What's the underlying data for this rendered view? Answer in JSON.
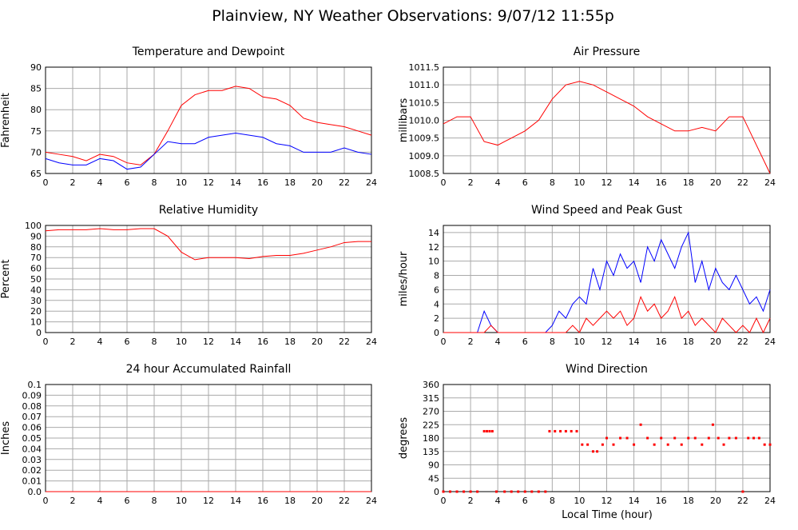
{
  "title": "Plainview, NY Weather Observations: 9/07/12 11:55p",
  "x_label": "Local Time (hour)",
  "chart_data": [
    {
      "type": "line",
      "title": "Temperature and Dewpoint",
      "y_label": "Fahrenheit",
      "x": [
        0,
        1,
        2,
        3,
        4,
        5,
        6,
        7,
        8,
        9,
        10,
        11,
        12,
        13,
        14,
        15,
        16,
        17,
        18,
        19,
        20,
        21,
        22,
        23,
        24
      ],
      "series": [
        {
          "color": "#ff0000",
          "values": [
            70,
            69.5,
            69,
            68,
            69.5,
            69,
            67.5,
            67,
            69.5,
            75,
            81,
            83.5,
            84.5,
            84.5,
            85.5,
            85,
            83,
            82.5,
            81,
            78,
            77,
            76.5,
            76,
            75,
            74
          ]
        },
        {
          "color": "#0000ff",
          "values": [
            68.5,
            67.5,
            67,
            67,
            68.5,
            68,
            66,
            66.5,
            69.5,
            72.5,
            72,
            72,
            73.5,
            74,
            74.5,
            74,
            73.5,
            72,
            71.5,
            70,
            70,
            70,
            71,
            70,
            69.5
          ]
        }
      ],
      "xlim": [
        0,
        24
      ],
      "xticks": [
        0,
        2,
        4,
        6,
        8,
        10,
        12,
        14,
        16,
        18,
        20,
        22,
        24
      ],
      "ylim": [
        65,
        90
      ],
      "yticks": [
        65,
        70,
        75,
        80,
        85,
        90
      ],
      "grid": true
    },
    {
      "type": "line",
      "title": "Air Pressure",
      "y_label": "millibars",
      "x": [
        0,
        1,
        2,
        3,
        4,
        5,
        6,
        7,
        8,
        9,
        10,
        11,
        12,
        13,
        14,
        15,
        16,
        17,
        18,
        19,
        20,
        21,
        22,
        23,
        24
      ],
      "series": [
        {
          "color": "#ff0000",
          "values": [
            1009.9,
            1010.1,
            1010.1,
            1009.4,
            1009.3,
            1009.5,
            1009.7,
            1010.0,
            1010.6,
            1011.0,
            1011.1,
            1011.0,
            1010.8,
            1010.6,
            1010.4,
            1010.1,
            1009.9,
            1009.7,
            1009.7,
            1009.8,
            1009.7,
            1010.1,
            1010.1,
            1009.3,
            1008.5
          ]
        }
      ],
      "xlim": [
        0,
        24
      ],
      "xticks": [
        0,
        2,
        4,
        6,
        8,
        10,
        12,
        14,
        16,
        18,
        20,
        22,
        24
      ],
      "ylim": [
        1008.5,
        1011.5
      ],
      "yticks": [
        1008.5,
        {
          "value": 1009,
          "label": "1009.0"
        },
        1009.5,
        {
          "value": 1010,
          "label": "1010.0"
        },
        1010.5,
        {
          "value": 1011,
          "label": "1011.0"
        },
        1011.5
      ],
      "grid": true
    },
    {
      "type": "line",
      "title": "Relative Humidity",
      "y_label": "Percent",
      "x": [
        0,
        1,
        2,
        3,
        4,
        5,
        6,
        7,
        8,
        9,
        10,
        11,
        12,
        13,
        14,
        15,
        16,
        17,
        18,
        19,
        20,
        21,
        22,
        23,
        24
      ],
      "series": [
        {
          "color": "#ff0000",
          "values": [
            95,
            96,
            96,
            96,
            97,
            96,
            96,
            97,
            97,
            90,
            75,
            68,
            70,
            70,
            70,
            69,
            71,
            72,
            72,
            74,
            77,
            80,
            84,
            85,
            85
          ]
        }
      ],
      "xlim": [
        0,
        24
      ],
      "xticks": [
        0,
        2,
        4,
        6,
        8,
        10,
        12,
        14,
        16,
        18,
        20,
        22,
        24
      ],
      "ylim": [
        0,
        100
      ],
      "yticks": [
        0,
        10,
        20,
        30,
        40,
        50,
        60,
        70,
        80,
        90,
        100
      ],
      "grid": true
    },
    {
      "type": "line",
      "title": "Wind Speed and Peak Gust",
      "y_label": "miles/hour",
      "x": [
        0,
        0.5,
        1,
        1.5,
        2,
        2.5,
        3,
        3.5,
        4,
        4.5,
        5,
        5.5,
        6,
        6.5,
        7,
        7.5,
        8,
        8.5,
        9,
        9.5,
        10,
        10.5,
        11,
        11.5,
        12,
        12.5,
        13,
        13.5,
        14,
        14.5,
        15,
        15.5,
        16,
        16.5,
        17,
        17.5,
        18,
        18.5,
        19,
        19.5,
        20,
        20.5,
        21,
        21.5,
        22,
        22.5,
        23,
        23.5,
        24
      ],
      "series": [
        {
          "color": "#0000ff",
          "values": [
            0,
            0,
            0,
            0,
            0,
            0,
            3,
            1,
            0,
            0,
            0,
            0,
            0,
            0,
            0,
            0,
            1,
            3,
            2,
            4,
            5,
            4,
            9,
            6,
            10,
            8,
            11,
            9,
            10,
            7,
            12,
            10,
            13,
            11,
            9,
            12,
            14,
            7,
            10,
            6,
            9,
            7,
            6,
            8,
            6,
            4,
            5,
            3,
            6
          ]
        },
        {
          "color": "#ff0000",
          "values": [
            0,
            0,
            0,
            0,
            0,
            0,
            0,
            1,
            0,
            0,
            0,
            0,
            0,
            0,
            0,
            0,
            0,
            0,
            0,
            1,
            0,
            2,
            1,
            2,
            3,
            2,
            3,
            1,
            2,
            5,
            3,
            4,
            2,
            3,
            5,
            2,
            3,
            1,
            2,
            1,
            0,
            2,
            1,
            0,
            1,
            0,
            2,
            0,
            2
          ]
        }
      ],
      "xlim": [
        0,
        24
      ],
      "xticks": [
        0,
        2,
        4,
        6,
        8,
        10,
        12,
        14,
        16,
        18,
        20,
        22,
        24
      ],
      "ylim": [
        0,
        15
      ],
      "yticks": [
        0,
        2,
        4,
        6,
        8,
        10,
        12,
        14
      ],
      "grid": true
    },
    {
      "type": "line",
      "title": "24 hour Accumulated Rainfall",
      "y_label": "Inches",
      "x": [
        0,
        24
      ],
      "series": [
        {
          "color": "#ff0000",
          "values": [
            0,
            0
          ]
        }
      ],
      "xlim": [
        0,
        24
      ],
      "xticks": [
        0,
        2,
        4,
        6,
        8,
        10,
        12,
        14,
        16,
        18,
        20,
        22,
        24
      ],
      "ylim": [
        0,
        0.1
      ],
      "yticks": [
        {
          "value": 0,
          "label": "0.0"
        },
        0.01,
        0.02,
        0.03,
        0.04,
        0.05,
        0.06,
        0.07,
        0.08,
        0.09,
        0.1
      ],
      "grid": true
    },
    {
      "type": "scatter",
      "title": "Wind Direction",
      "y_label": "degrees",
      "x": [
        0,
        0.5,
        1,
        1.5,
        2,
        2.5,
        3,
        3.2,
        3.4,
        3.6,
        3.9,
        4.5,
        5,
        5.5,
        6,
        6.5,
        7,
        7.5,
        7.8,
        8.2,
        8.6,
        9,
        9.4,
        9.8,
        10.2,
        10.6,
        11,
        11.3,
        11.7,
        12,
        12.5,
        13,
        13.5,
        14,
        14.5,
        15,
        15.5,
        16,
        16.5,
        17,
        17.5,
        18,
        18.5,
        19,
        19.5,
        19.8,
        20.2,
        20.6,
        21,
        21.5,
        22,
        22.4,
        22.8,
        23.2,
        23.6,
        24
      ],
      "series": [
        {
          "color": "#ff0000",
          "values": [
            0,
            0,
            0,
            0,
            0,
            0,
            203,
            203,
            203,
            203,
            0,
            0,
            0,
            0,
            0,
            0,
            0,
            0,
            203,
            203,
            203,
            203,
            203,
            203,
            158,
            158,
            135,
            135,
            158,
            180,
            158,
            180,
            180,
            158,
            225,
            180,
            158,
            180,
            158,
            180,
            158,
            180,
            180,
            158,
            180,
            225,
            180,
            158,
            180,
            180,
            0,
            180,
            180,
            180,
            158,
            158
          ]
        }
      ],
      "xlim": [
        0,
        24
      ],
      "xticks": [
        0,
        2,
        4,
        6,
        8,
        10,
        12,
        14,
        16,
        18,
        20,
        22,
        24
      ],
      "ylim": [
        0,
        360
      ],
      "yticks": [
        0,
        45,
        90,
        135,
        180,
        225,
        270,
        315,
        360
      ],
      "grid": true
    }
  ]
}
